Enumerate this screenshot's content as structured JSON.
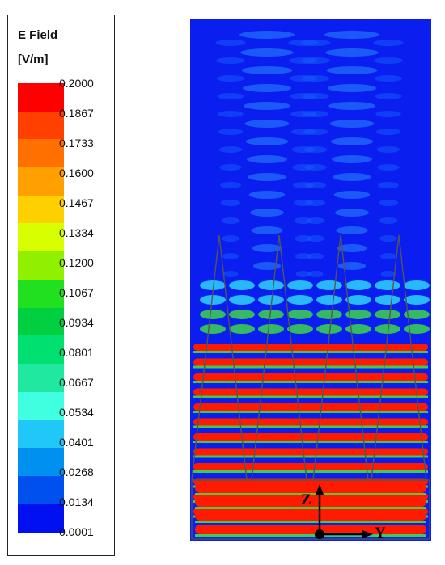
{
  "legend": {
    "title": "E Field",
    "unit": "[V/m]",
    "ticks": [
      "0.2000",
      "0.1867",
      "0.1733",
      "0.1600",
      "0.1467",
      "0.1334",
      "0.1200",
      "0.1067",
      "0.0934",
      "0.0801",
      "0.0667",
      "0.0534",
      "0.0401",
      "0.0268",
      "0.0134",
      "0.0001"
    ],
    "colors": [
      "#ff0000",
      "#ff4000",
      "#ff7000",
      "#ffa000",
      "#ffd000",
      "#d8ff00",
      "#90f000",
      "#20e020",
      "#00d040",
      "#00e070",
      "#20e8a0",
      "#40ffe0",
      "#20c8f8",
      "#0090f0",
      "#0050f0",
      "#0010f0"
    ]
  },
  "plot": {
    "axis_z_label": "Z",
    "axis_y_label": "Y",
    "colors": {
      "background": "#0a1ef0",
      "hot": "#ff1a00",
      "warm": "#40e040",
      "mid": "#30e0ff",
      "spine": "#555555"
    }
  }
}
